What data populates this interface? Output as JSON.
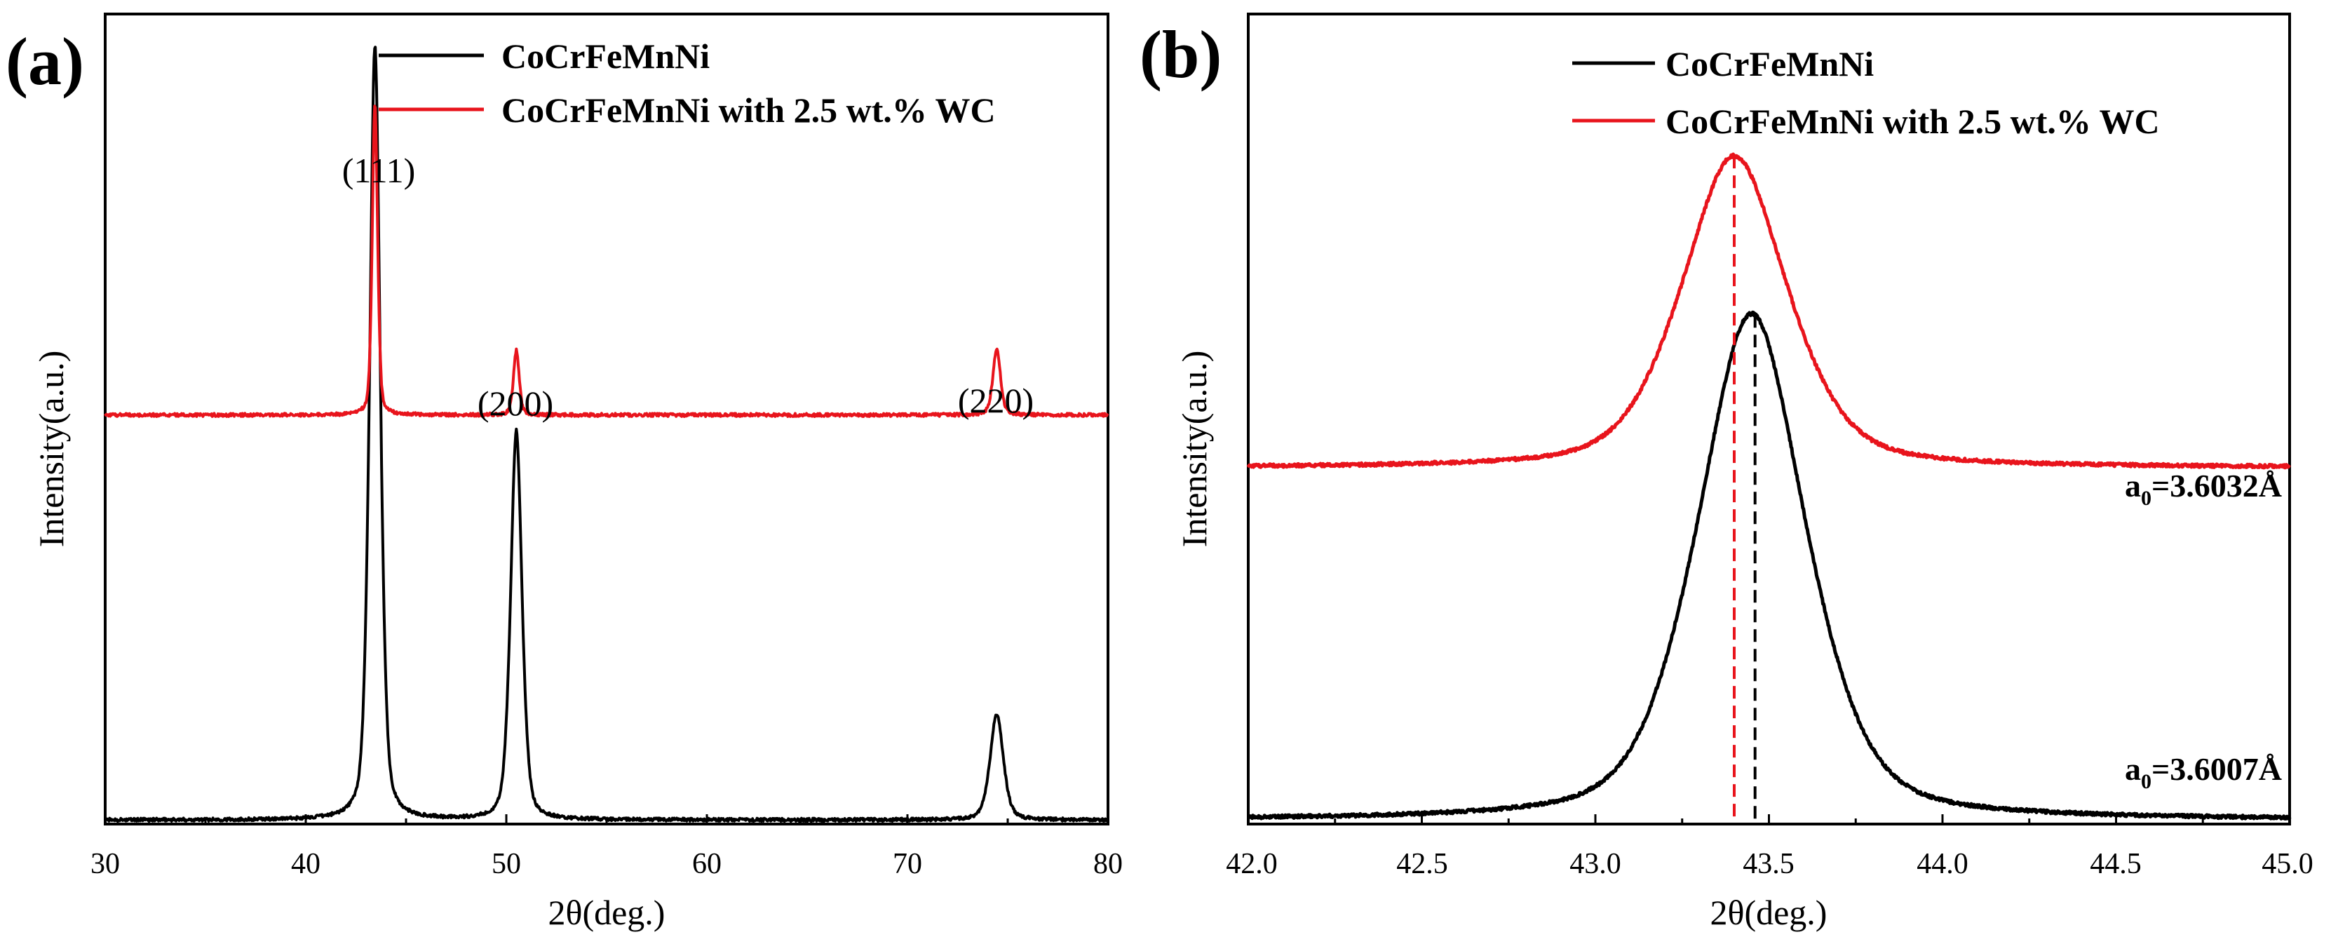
{
  "chart_data": [
    {
      "panel": "(a)",
      "type": "line",
      "xlabel": "2θ(deg.)",
      "ylabel": "Intensity(a.u.)",
      "xlim": [
        30,
        80
      ],
      "ylim": [
        0,
        1
      ],
      "xticks": [
        "30",
        "40",
        "50",
        "60",
        "70",
        "80"
      ],
      "y_ticks_shown": false,
      "legend": {
        "placement": "top-center",
        "entries": [
          {
            "label": "CoCrFeMnNi",
            "color": "#000000"
          },
          {
            "label": "CoCrFeMnNi with 2.5 wt.% WC",
            "color": "#e8141c"
          }
        ]
      },
      "series": [
        {
          "name": "CoCrFeMnNi",
          "color": "#000000",
          "baseline": 0.005,
          "peaks": [
            {
              "x": 43.45,
              "height": 0.955,
              "width": 0.28
            },
            {
              "x": 50.5,
              "height": 0.48,
              "width": 0.3
            },
            {
              "x": 74.45,
              "height": 0.13,
              "width": 0.35
            }
          ]
        },
        {
          "name": "CoCrFeMnNi with 2.5 wt.% WC",
          "color": "#e8141c",
          "baseline": 0.505,
          "peaks": [
            {
              "x": 43.45,
              "height": 0.385,
              "width": 0.14
            },
            {
              "x": 50.5,
              "height": 0.08,
              "width": 0.15
            },
            {
              "x": 74.45,
              "height": 0.082,
              "width": 0.2
            }
          ]
        }
      ],
      "annotations": [
        {
          "text": "(111)",
          "x": 43.4,
          "y": 0.95
        },
        {
          "text": "(200)",
          "x": 50.1,
          "y": 0.605
        },
        {
          "text": "(220)",
          "x": 74.2,
          "y": 0.605
        }
      ]
    },
    {
      "panel": "(b)",
      "type": "line",
      "xlabel": "2θ(deg.)",
      "ylabel": "Intensity(a.u.)",
      "xlim": [
        42.0,
        45.0
      ],
      "ylim": [
        0,
        1
      ],
      "xticks": [
        "42.0",
        "42.5",
        "43.0",
        "43.5",
        "44.0",
        "44.5",
        "45.0"
      ],
      "y_ticks_shown": false,
      "legend": {
        "placement": "top-center",
        "entries": [
          {
            "label": "CoCrFeMnNi",
            "color": "#000000"
          },
          {
            "label": "CoCrFeMnNi with 2.5 wt.% WC",
            "color": "#e8141c"
          }
        ]
      },
      "series": [
        {
          "name": "CoCrFeMnNi",
          "color": "#000000",
          "baseline": 0.005,
          "peaks": [
            {
              "x": 43.45,
              "height": 0.625,
              "width": 0.165
            }
          ]
        },
        {
          "name": "CoCrFeMnNi with 2.5 wt.% WC",
          "color": "#e8141c",
          "baseline": 0.44,
          "peaks": [
            {
              "x": 43.4,
              "height": 0.385,
              "width": 0.16
            }
          ]
        }
      ],
      "vlines": [
        {
          "x": 43.4,
          "color": "#e8141c"
        },
        {
          "x": 43.46,
          "color": "#000000"
        }
      ],
      "annotations": [
        {
          "main": "a",
          "sub": "0",
          "rest": "=3.6032Å",
          "x": 44.27,
          "y": 0.59
        },
        {
          "main": "a",
          "sub": "0",
          "rest": "=3.6007Å",
          "x": 44.27,
          "y": 0.155
        }
      ]
    }
  ]
}
